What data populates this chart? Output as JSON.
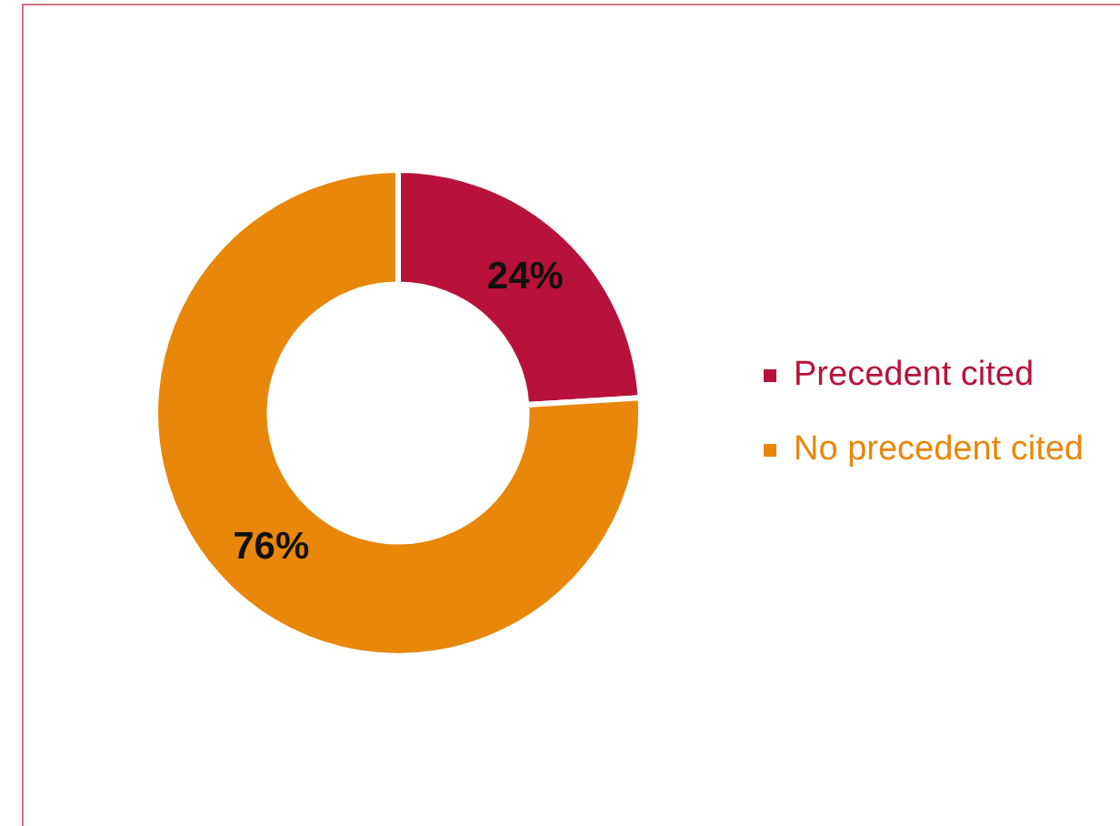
{
  "chart_data": {
    "type": "donut",
    "categories": [
      "Precedent cited",
      "No precedent cited"
    ],
    "values": [
      24,
      76
    ],
    "colors": [
      "#b8123a",
      "#e8870a"
    ],
    "value_labels": [
      "24%",
      "76%"
    ],
    "legend": "right"
  }
}
